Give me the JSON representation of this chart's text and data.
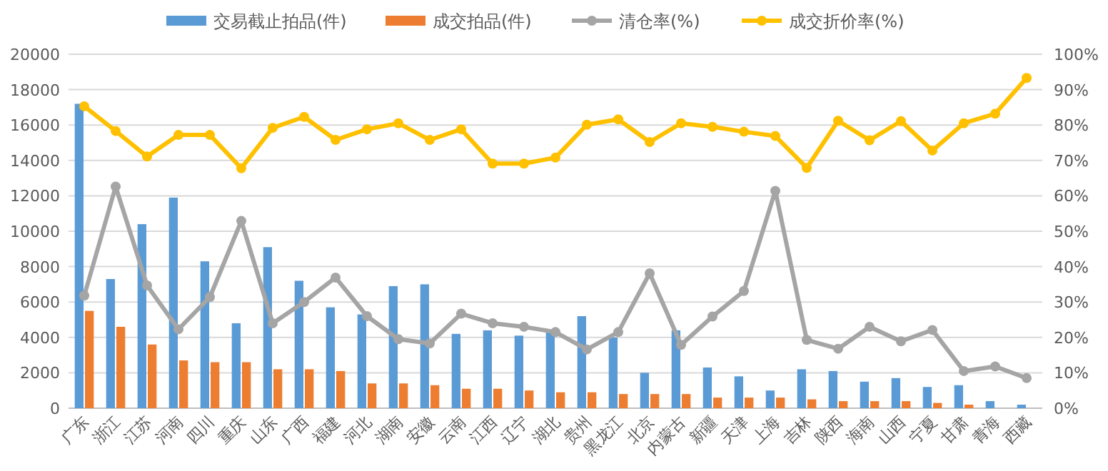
{
  "chart_data": {
    "type": "bar",
    "categories": [
      "广东",
      "浙江",
      "江苏",
      "河南",
      "四川",
      "重庆",
      "山东",
      "广西",
      "福建",
      "河北",
      "湖南",
      "安徽",
      "云南",
      "江西",
      "辽宁",
      "湖北",
      "贵州",
      "黑龙江",
      "北京",
      "内蒙古",
      "新疆",
      "天津",
      "上海",
      "吉林",
      "陕西",
      "海南",
      "山西",
      "宁夏",
      "甘肃",
      "青海",
      "西藏"
    ],
    "series": [
      {
        "name": "交易截止拍品(件)",
        "color": "#5b9bd5",
        "values": [
          17200,
          7300,
          10400,
          11900,
          8300,
          4800,
          9100,
          7200,
          5700,
          5300,
          6900,
          7000,
          4200,
          4400,
          4100,
          4300,
          5200,
          4000,
          2000,
          4400,
          2300,
          1800,
          1000,
          2200,
          2100,
          1500,
          1700,
          1200,
          1300,
          400,
          200
        ]
      },
      {
        "name": "成交拍品(件)",
        "color": "#ed7d31",
        "values": [
          5500,
          4600,
          3600,
          2700,
          2600,
          2600,
          2200,
          2200,
          2100,
          1400,
          1400,
          1300,
          1100,
          1100,
          1000,
          900,
          900,
          800,
          800,
          800,
          600,
          600,
          600,
          500,
          400,
          400,
          400,
          300,
          200,
          0,
          0
        ]
      },
      {
        "name": "清仓率(%)",
        "type": "line",
        "axis": "y2",
        "color": "#a5a5a5",
        "values": [
          31.8,
          62.6,
          34.7,
          22.3,
          31.4,
          52.9,
          24.0,
          30.0,
          36.9,
          26.0,
          19.5,
          18.3,
          26.7,
          24.0,
          23.0,
          21.5,
          16.6,
          21.5,
          38.1,
          17.9,
          25.9,
          33.1,
          61.4,
          19.3,
          16.8,
          23.0,
          18.9,
          22.1,
          10.5,
          11.8,
          8.5
        ]
      },
      {
        "name": "成交折价率(%)",
        "type": "line",
        "axis": "y2",
        "color": "#ffc000",
        "values": [
          85.3,
          78.3,
          71.1,
          77.2,
          77.2,
          67.8,
          79.2,
          82.3,
          75.8,
          78.8,
          80.5,
          75.8,
          78.8,
          69.1,
          69.1,
          70.8,
          80.1,
          81.6,
          75.2,
          80.5,
          79.5,
          78.1,
          76.9,
          67.9,
          81.2,
          75.7,
          81.1,
          72.8,
          80.5,
          83.2,
          93.3
        ]
      }
    ],
    "ylim": [
      0,
      20000
    ],
    "yticks": [
      0,
      2000,
      4000,
      6000,
      8000,
      10000,
      12000,
      14000,
      16000,
      18000,
      20000
    ],
    "y2lim": [
      0,
      100
    ],
    "y2ticks": [
      {
        "value": 0,
        "label": "0%"
      },
      {
        "value": 10,
        "label": "10%"
      },
      {
        "value": 20,
        "label": "20%"
      },
      {
        "value": 30,
        "label": "30%"
      },
      {
        "value": 40,
        "label": "40%"
      },
      {
        "value": 50,
        "label": "50%"
      },
      {
        "value": 60,
        "label": "60%"
      },
      {
        "value": 70,
        "label": "70%"
      },
      {
        "value": 80,
        "label": "80%"
      },
      {
        "value": 90,
        "label": "90%"
      },
      {
        "value": 100,
        "label": "100%"
      }
    ],
    "grid": "y",
    "legend": "top",
    "marker": "circle",
    "line_style": "solid"
  }
}
